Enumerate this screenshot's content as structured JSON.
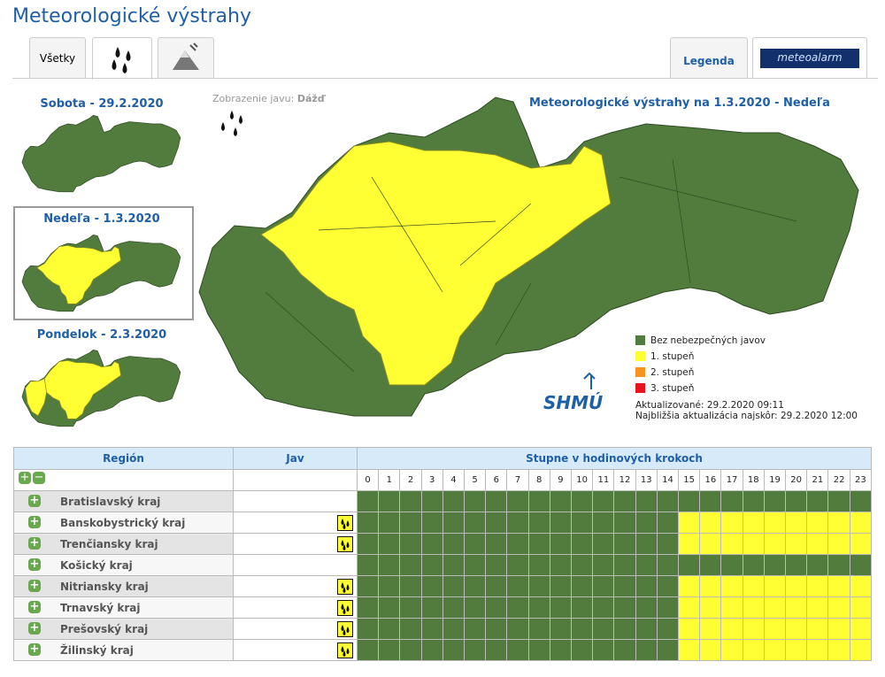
{
  "header": {
    "title": "Meteorologické výstrahy"
  },
  "tabs": {
    "all": "Všetky",
    "legend": "Legenda",
    "logo": "meteoalarm"
  },
  "days": [
    "Sobota - 29.2.2020",
    "Nedeľa - 1.3.2020",
    "Pondelok - 2.3.2020"
  ],
  "display": {
    "label": "Zobrazenie javu:",
    "value": "Dážď"
  },
  "map": {
    "title": "Meteorologické výstrahy na 1.3.2020 - Nedeľa",
    "legend": [
      {
        "label": "Bez nebezpečných javov",
        "color": "#527c3e"
      },
      {
        "label": "1. stupeň",
        "color": "#ffff33"
      },
      {
        "label": "2. stupeň",
        "color": "#f7931e"
      },
      {
        "label": "3. stupeň",
        "color": "#e8141b"
      }
    ],
    "logo": "SHMÚ",
    "updated": "Aktualizované: 29.2.2020 09:11",
    "next_update": "Najbližšia aktualizácia najskôr: 29.2.2020 12:00"
  },
  "table": {
    "headers": [
      "Región",
      "Jav",
      "Stupne v hodinových krokoch"
    ],
    "hours": [
      0,
      1,
      2,
      3,
      4,
      5,
      6,
      7,
      8,
      9,
      10,
      11,
      12,
      13,
      14,
      15,
      16,
      17,
      18,
      19,
      20,
      21,
      22,
      23
    ],
    "rows": [
      {
        "name": "Bratislavský kraj",
        "icon": false,
        "levels": [
          0,
          0,
          0,
          0,
          0,
          0,
          0,
          0,
          0,
          0,
          0,
          0,
          0,
          0,
          0,
          0,
          0,
          0,
          0,
          0,
          0,
          0,
          0,
          0
        ]
      },
      {
        "name": "Banskobystrický kraj",
        "icon": true,
        "levels": [
          0,
          0,
          0,
          0,
          0,
          0,
          0,
          0,
          0,
          0,
          0,
          0,
          0,
          0,
          0,
          1,
          1,
          1,
          1,
          1,
          1,
          1,
          1,
          1
        ]
      },
      {
        "name": "Trenčiansky kraj",
        "icon": true,
        "levels": [
          0,
          0,
          0,
          0,
          0,
          0,
          0,
          0,
          0,
          0,
          0,
          0,
          0,
          0,
          0,
          1,
          1,
          1,
          1,
          1,
          1,
          1,
          1,
          1
        ]
      },
      {
        "name": "Košický kraj",
        "icon": false,
        "levels": [
          0,
          0,
          0,
          0,
          0,
          0,
          0,
          0,
          0,
          0,
          0,
          0,
          0,
          0,
          0,
          0,
          0,
          0,
          0,
          0,
          0,
          0,
          0,
          0
        ]
      },
      {
        "name": "Nitriansky kraj",
        "icon": true,
        "levels": [
          0,
          0,
          0,
          0,
          0,
          0,
          0,
          0,
          0,
          0,
          0,
          0,
          0,
          0,
          0,
          1,
          1,
          1,
          1,
          1,
          1,
          1,
          1,
          1
        ]
      },
      {
        "name": "Trnavský kraj",
        "icon": true,
        "levels": [
          0,
          0,
          0,
          0,
          0,
          0,
          0,
          0,
          0,
          0,
          0,
          0,
          0,
          0,
          0,
          1,
          1,
          1,
          1,
          1,
          1,
          1,
          1,
          1
        ]
      },
      {
        "name": "Prešovský kraj",
        "icon": true,
        "levels": [
          0,
          0,
          0,
          0,
          0,
          0,
          0,
          0,
          0,
          0,
          0,
          0,
          0,
          0,
          0,
          1,
          1,
          1,
          1,
          1,
          1,
          1,
          1,
          1
        ]
      },
      {
        "name": "Žilinský kraj",
        "icon": true,
        "levels": [
          0,
          0,
          0,
          0,
          0,
          0,
          0,
          0,
          0,
          0,
          0,
          0,
          0,
          0,
          0,
          1,
          1,
          1,
          1,
          1,
          1,
          1,
          1,
          1
        ]
      }
    ]
  }
}
